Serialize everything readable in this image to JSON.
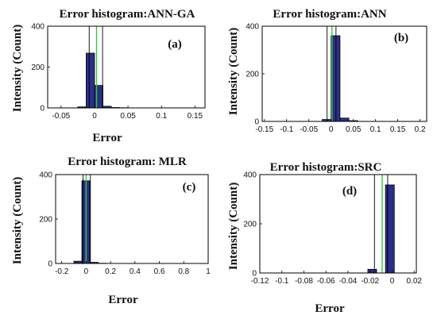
{
  "colors": {
    "bar": "#2a2f86",
    "mean_line": "#33cc33",
    "bound_line": "#000000"
  },
  "chart_data": [
    {
      "type": "bar",
      "panel": "(a)",
      "title": "Error histogram:ANN-GA",
      "xlabel": "Error",
      "ylabel": "Intensity (Count)",
      "xlim": [
        -0.07,
        0.165
      ],
      "ylim": [
        0,
        400
      ],
      "xticks": [
        -0.05,
        0,
        0.05,
        0.1,
        0.15
      ],
      "xtick_labels": [
        "-0.05",
        "0",
        "0.05",
        "0.1",
        "0.15"
      ],
      "yticks": [
        0,
        200,
        400
      ],
      "ytick_labels": [
        "0",
        "200",
        "400"
      ],
      "bin_width": 0.0125,
      "bins": [
        -0.025,
        -0.0125,
        0,
        0.0125,
        0.025,
        0.0375
      ],
      "values": [
        5,
        268,
        110,
        8,
        2,
        1
      ],
      "mean_line": 0.003,
      "bound_lines": [
        -0.008,
        0.012
      ]
    },
    {
      "type": "bar",
      "panel": "(b)",
      "title": "Error histogram:ANN",
      "xlabel": "",
      "ylabel": "Intensity (Count)",
      "xlim": [
        -0.155,
        0.215
      ],
      "ylim": [
        0,
        400
      ],
      "xticks": [
        -0.15,
        -0.1,
        -0.05,
        0,
        0.05,
        0.1,
        0.15,
        0.2
      ],
      "xtick_labels": [
        "-0.15",
        "-0.1",
        "-0.05",
        "0",
        "0.05",
        "0.1",
        "0.15",
        "0.2"
      ],
      "yticks": [
        0,
        200,
        400
      ],
      "ytick_labels": [
        "0",
        "200",
        "400"
      ],
      "bin_width": 0.02,
      "bins": [
        -0.02,
        0,
        0.02,
        0.04
      ],
      "values": [
        8,
        360,
        14,
        3
      ],
      "mean_line": 0.002,
      "bound_lines": [
        -0.009,
        0.011
      ]
    },
    {
      "type": "bar",
      "panel": "(c)",
      "title": "Error histogram: MLR",
      "xlabel": "Error",
      "ylabel": "Intensity (Count)",
      "xlim": [
        -0.25,
        1.0
      ],
      "ylim": [
        0,
        400
      ],
      "xticks": [
        -0.2,
        0,
        0.2,
        0.4,
        0.6,
        0.8,
        1
      ],
      "xtick_labels": [
        "-0.2",
        "0",
        "0.2",
        "0.4",
        "0.6",
        "0.8",
        "1"
      ],
      "yticks": [
        0,
        200,
        400
      ],
      "ytick_labels": [
        "0",
        "200",
        "400"
      ],
      "bin_width": 0.065,
      "bins": [
        -0.1,
        -0.035,
        0.035,
        0.1
      ],
      "values": [
        10,
        372,
        5,
        1
      ],
      "mean_line": 0.0,
      "bound_lines": [
        -0.025,
        0.035
      ]
    },
    {
      "type": "bar",
      "panel": "(d)",
      "title": "Error histogram:SRC",
      "xlabel": "Error",
      "ylabel": "Intensity (Count)",
      "xlim": [
        -0.12,
        0.022
      ],
      "ylim": [
        0,
        400
      ],
      "xticks": [
        -0.12,
        -0.1,
        -0.08,
        -0.06,
        -0.04,
        -0.02,
        0,
        0.02
      ],
      "xtick_labels": [
        "-0.12",
        "-0.1",
        "-0.08",
        "-0.06",
        "-0.04",
        "-0.02",
        "0",
        "0.02"
      ],
      "yticks": [
        0,
        200,
        400
      ],
      "ytick_labels": [
        "0",
        "200",
        "400"
      ],
      "bin_width": 0.008,
      "bins": [
        -0.022,
        -0.014,
        -0.006
      ],
      "values": [
        15,
        0,
        358
      ],
      "mean_line": -0.009,
      "bound_lines": [
        -0.016,
        -0.004
      ]
    }
  ]
}
